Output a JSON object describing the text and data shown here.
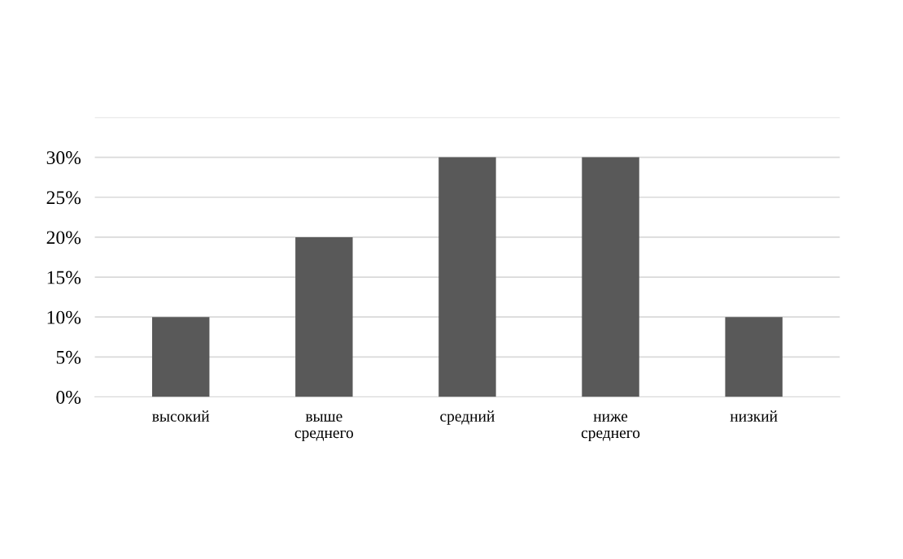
{
  "chart_data": {
    "type": "bar",
    "categories": [
      "высокий",
      "выше\nсреднего",
      "средний",
      "ниже\nсреднего",
      "низкий"
    ],
    "values": [
      10,
      20,
      30,
      30,
      10
    ],
    "color": "#595959",
    "ylim": [
      0,
      35
    ],
    "yticks": [
      {
        "value": 0,
        "label": "0%"
      },
      {
        "value": 5,
        "label": "5%"
      },
      {
        "value": 10,
        "label": "10%"
      },
      {
        "value": 15,
        "label": "15%"
      },
      {
        "value": 20,
        "label": "20%"
      },
      {
        "value": 25,
        "label": "25%"
      },
      {
        "value": 30,
        "label": "30%"
      },
      {
        "value": 35,
        "label": null
      }
    ],
    "grid": "y"
  }
}
